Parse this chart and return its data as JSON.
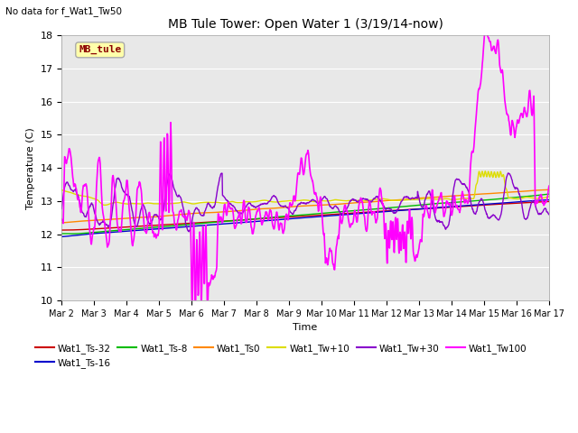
{
  "title": "MB Tule Tower: Open Water 1 (3/19/14-now)",
  "subtitle": "No data for f_Wat1_Tw50",
  "xlabel": "Time",
  "ylabel": "Temperature (C)",
  "ylim": [
    10.0,
    18.0
  ],
  "yticks": [
    10.0,
    11.0,
    12.0,
    13.0,
    14.0,
    15.0,
    16.0,
    17.0,
    18.0
  ],
  "xlim_days": [
    0,
    15
  ],
  "xtick_labels": [
    "Mar 2",
    "Mar 3",
    "Mar 4",
    "Mar 5",
    "Mar 6",
    "Mar 7",
    "Mar 8",
    "Mar 9",
    "Mar 10",
    "Mar 11",
    "Mar 12",
    "Mar 13",
    "Mar 14",
    "Mar 15",
    "Mar 16",
    "Mar 17"
  ],
  "bg_color": "#e8e8e8",
  "legend_box_facecolor": "#ffffaa",
  "legend_box_edgecolor": "#aaaaaa",
  "legend_box_text_color": "#8b0000",
  "series": [
    {
      "label": "Wat1_Ts-32",
      "color": "#cc0000"
    },
    {
      "label": "Wat1_Ts-16",
      "color": "#0000cc"
    },
    {
      "label": "Wat1_Ts-8",
      "color": "#00bb00"
    },
    {
      "label": "Wat1_Ts0",
      "color": "#ff8800"
    },
    {
      "label": "Wat1_Tw+10",
      "color": "#dddd00"
    },
    {
      "label": "Wat1_Tw+30",
      "color": "#8800cc"
    },
    {
      "label": "Wat1_Tw100",
      "color": "#ff00ff"
    }
  ]
}
